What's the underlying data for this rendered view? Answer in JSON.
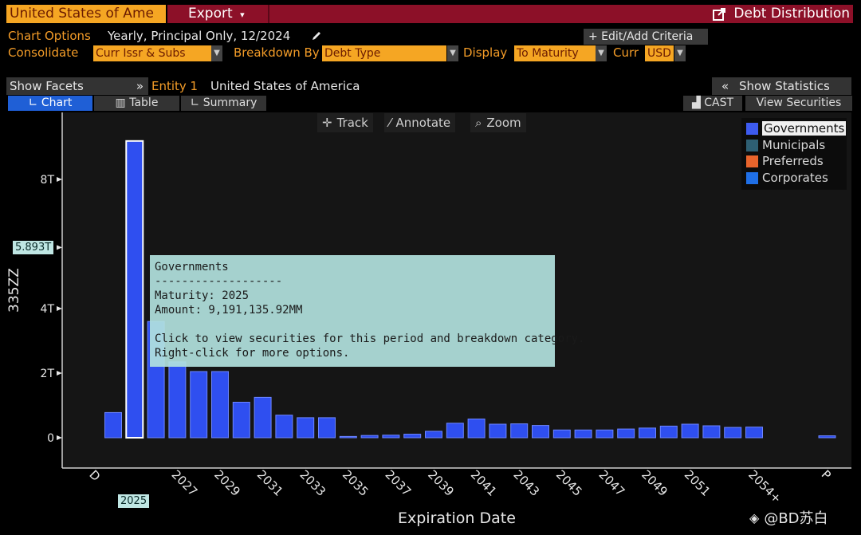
{
  "topbar": {
    "entity_field": "United States of Ame",
    "export_label": "Export",
    "export_caret": "▾",
    "title": "Debt Distribution"
  },
  "options": {
    "chart_options_label": "Chart Options",
    "chart_options_value": "Yearly, Principal Only, 12/2024",
    "edit_criteria_label": "+ Edit/Add Criteria",
    "consolidate_label": "Consolidate",
    "consolidate_value": "Curr Issr & Subs",
    "breakdown_label": "Breakdown By",
    "breakdown_value": "Debt Type",
    "display_label": "Display",
    "display_value": "To Maturity",
    "curr_label": "Curr",
    "curr_value": "USD"
  },
  "facets": {
    "show_facets": "Show Facets",
    "facets_arrow": "»",
    "entity_label": "Entity 1",
    "entity_value": "United States of America",
    "show_statistics": "Show Statistics",
    "stats_arrow": "«"
  },
  "tabs": {
    "chart": "Chart",
    "table": "Table",
    "summary": "Summary",
    "cast": "CAST",
    "view_securities": "View Securities"
  },
  "toolbar": {
    "track": "Track",
    "annotate": "Annotate",
    "zoom": "Zoom"
  },
  "legend": [
    {
      "label": "Governments",
      "color": "#3d5bf0"
    },
    {
      "label": "Municipals",
      "color": "#2e5f73"
    },
    {
      "label": "Preferreds",
      "color": "#e8642c"
    },
    {
      "label": "Corporates",
      "color": "#1f6fe6"
    }
  ],
  "tooltip": {
    "title": "Governments",
    "divider": "-------------------",
    "maturity": "Maturity: 2025",
    "amount": "Amount: 9,191,135.92MM",
    "line1": "Click to view securities for this period and breakdown category.",
    "line2": "Right-click for more options."
  },
  "crosshair": {
    "y_value_label": "5.893T",
    "x_value_label": "2025"
  },
  "watermark": "@BD苏白",
  "chart_data": {
    "type": "bar",
    "xlabel": "Expiration Date",
    "ylabel": "335ZZ",
    "yticks": [
      "0",
      "2T",
      "4T",
      "8T"
    ],
    "ytick_values": [
      0,
      2,
      4,
      8
    ],
    "ylim": [
      0,
      9.4
    ],
    "xtick_labels": [
      "D",
      "2025",
      "2027",
      "2029",
      "2031",
      "2033",
      "2035",
      "2037",
      "2039",
      "2041",
      "2043",
      "2045",
      "2047",
      "2049",
      "2051",
      "2054+",
      "P"
    ],
    "grid": false,
    "legend_position": "top-right",
    "highlighted_category": "2025",
    "series": [
      {
        "name": "Governments",
        "color": "#2f4ff0"
      }
    ],
    "categories": [
      "2024",
      "2025",
      "2026",
      "2027",
      "2028",
      "2029",
      "2030",
      "2031",
      "2032",
      "2033",
      "2034",
      "2035",
      "2036",
      "2037",
      "2038",
      "2039",
      "2040",
      "2041",
      "2042",
      "2043",
      "2044",
      "2045",
      "2046",
      "2047",
      "2048",
      "2049",
      "2050",
      "2051",
      "2052",
      "2053",
      "2054+",
      "P"
    ],
    "values": [
      0.78,
      9.19,
      3.6,
      2.35,
      2.05,
      2.05,
      1.1,
      1.25,
      0.7,
      0.62,
      0.62,
      0.04,
      0.07,
      0.08,
      0.11,
      0.2,
      0.45,
      0.58,
      0.42,
      0.43,
      0.38,
      0.24,
      0.24,
      0.24,
      0.27,
      0.3,
      0.36,
      0.42,
      0.37,
      0.32,
      0.33,
      0.06
    ]
  }
}
